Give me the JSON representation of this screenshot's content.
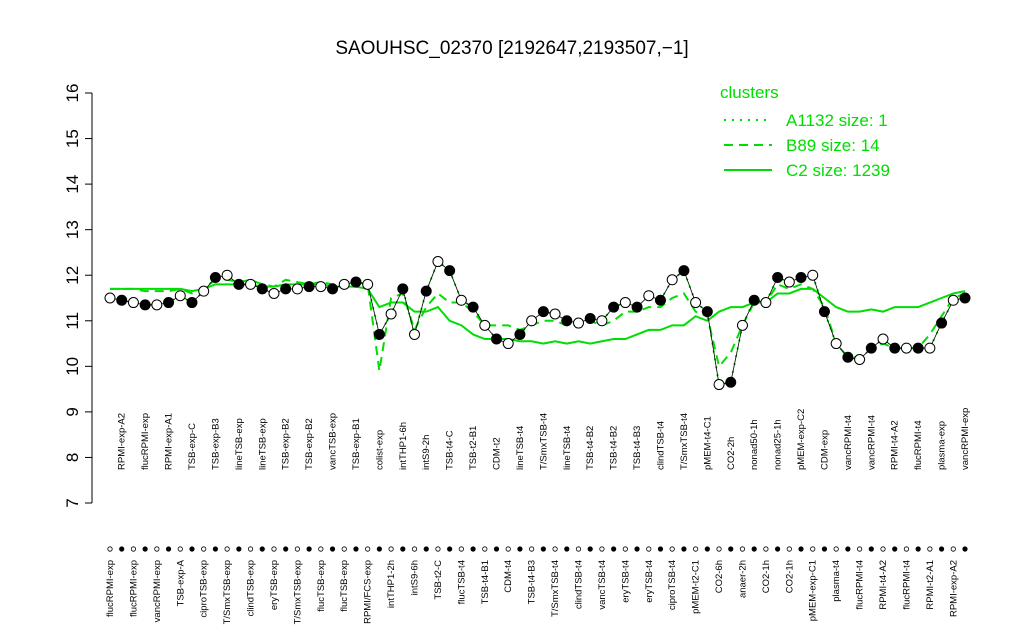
{
  "chart_data": {
    "type": "line",
    "title": "SAOUHSC_02370 [2192647,2193507,−1]",
    "legend_title": "clusters",
    "categories": [
      "flucRPMI-exp",
      "RPMI-exp-A2",
      "flucRPMI-exp",
      "flucRPMI-exp",
      "vancRPMI-exp",
      "RPMI-exp-A1",
      "TSB-exp-A",
      "TSB-exp-C",
      "ciproTSB-exp",
      "TSB-exp-B3",
      "T/SmxTSB-exp",
      "lineTSB-exp",
      "clindTSB-exp",
      "lineTSB-exp",
      "eryTSB-exp",
      "TSB-exp-B2",
      "T/SmxTSB-exp",
      "TSB-exp-B2",
      "flucTSB-exp",
      "vancTSB-exp",
      "flucTSB-exp",
      "TSB-exp-B1",
      "RPMI/FCS-exp",
      "colist-exp",
      "intTHP1-2h",
      "intTHP1-6h",
      "intS9-6h",
      "intS9-2h",
      "TSB-t2-C",
      "TSB-t4-C",
      "flucTSB-t4",
      "TSB-t2-B1",
      "TSB-t4-B1",
      "CDM-t2",
      "CDM-t4",
      "lineTSB-t4",
      "TSB-t4-B3",
      "T/SmxTSB-t4",
      "T/SmxTSB-t4",
      "lineTSB-t4",
      "clindTSB-t4",
      "TSB-t4-B2",
      "vancTSB-t4",
      "TSB-t4-B2",
      "eryTSB-t4",
      "TSB-t4-B3",
      "eryTSB-t4",
      "clindTSB-t4",
      "ciproTSB-t4",
      "T/SmxTSB-t4",
      "pMEM-t2-C1",
      "pMEM-t4-C1",
      "CO2-6h",
      "CO2-2h",
      "anaer-2h",
      "nonad50-1h",
      "CO2-1h",
      "nonad25-1h",
      "CO2-1h",
      "pMEM-exp-C2",
      "pMEM-exp-C1",
      "CDM-exp",
      "plasma-t4",
      "vancRPMI-t4",
      "flucRPMI-t4",
      "vancRPMI-t4",
      "RPMI-t4-A2",
      "RPMI-t4-A2",
      "flucRPMI-t4",
      "flucRPMI-t4",
      "RPMI-t2-A1",
      "plasma-exp",
      "RPMI-exp-A2",
      "vancRPMI-exp"
    ],
    "series": [
      {
        "name": "A1132 size: 1",
        "color": "#00dd00",
        "style": "dotted",
        "points": true,
        "values": [
          11.5,
          11.45,
          11.4,
          11.35,
          11.35,
          11.4,
          11.55,
          11.4,
          11.65,
          11.95,
          12.0,
          11.8,
          11.8,
          11.7,
          11.6,
          11.7,
          11.7,
          11.75,
          11.75,
          11.7,
          11.8,
          11.85,
          11.8,
          10.7,
          11.15,
          11.7,
          10.7,
          11.65,
          12.3,
          12.1,
          11.45,
          11.3,
          10.9,
          10.6,
          10.5,
          10.7,
          11.0,
          11.2,
          11.15,
          11.0,
          10.95,
          11.05,
          11.0,
          11.3,
          11.4,
          11.3,
          11.55,
          11.45,
          11.9,
          12.1,
          11.4,
          11.2,
          9.6,
          9.65,
          10.9,
          11.45,
          11.4,
          11.95,
          11.85,
          11.95,
          12.0,
          11.2,
          10.5,
          10.2,
          10.15,
          10.4,
          10.6,
          10.4,
          10.4,
          10.4,
          10.4,
          10.95,
          11.45,
          11.5
        ]
      },
      {
        "name": "B89 size: 14",
        "color": "#00dd00",
        "style": "dashed",
        "points": false,
        "values": [
          11.7,
          11.7,
          11.7,
          11.65,
          11.65,
          11.65,
          11.7,
          11.6,
          11.7,
          11.9,
          11.9,
          11.85,
          11.9,
          11.8,
          11.75,
          11.9,
          11.85,
          11.8,
          11.85,
          11.8,
          11.85,
          11.85,
          11.8,
          9.9,
          11.5,
          11.6,
          10.8,
          11.3,
          11.6,
          11.4,
          11.4,
          11.2,
          10.9,
          10.9,
          10.9,
          10.8,
          10.9,
          11.0,
          11.0,
          10.9,
          10.9,
          11.0,
          10.9,
          11.0,
          11.2,
          11.2,
          11.3,
          11.3,
          11.5,
          11.6,
          11.2,
          11.1,
          10.0,
          10.3,
          10.9,
          11.4,
          11.4,
          11.8,
          11.7,
          11.8,
          11.7,
          11.3,
          10.5,
          10.2,
          10.2,
          10.4,
          10.5,
          10.4,
          10.4,
          10.4,
          10.7,
          11.1,
          11.5,
          11.6
        ]
      },
      {
        "name": "C2 size: 1239",
        "color": "#00dd00",
        "style": "solid",
        "points": false,
        "values": [
          11.7,
          11.7,
          11.7,
          11.7,
          11.7,
          11.7,
          11.7,
          11.65,
          11.7,
          11.8,
          11.8,
          11.8,
          11.8,
          11.75,
          11.75,
          11.8,
          11.8,
          11.8,
          11.8,
          11.75,
          11.75,
          11.75,
          11.7,
          11.3,
          11.4,
          11.4,
          11.2,
          11.2,
          11.3,
          11.0,
          10.9,
          10.7,
          10.6,
          10.6,
          10.6,
          10.55,
          10.55,
          10.5,
          10.55,
          10.5,
          10.55,
          10.5,
          10.55,
          10.6,
          10.6,
          10.7,
          10.8,
          10.8,
          10.9,
          10.9,
          11.1,
          11.0,
          11.2,
          11.3,
          11.3,
          11.4,
          11.4,
          11.6,
          11.6,
          11.7,
          11.7,
          11.5,
          11.3,
          11.2,
          11.2,
          11.25,
          11.2,
          11.3,
          11.3,
          11.3,
          11.4,
          11.5,
          11.6,
          11.65
        ]
      }
    ],
    "ylim": [
      7,
      16
    ],
    "yticks": [
      7,
      8,
      9,
      10,
      11,
      12,
      13,
      14,
      15,
      16
    ],
    "legend": "top-right"
  }
}
